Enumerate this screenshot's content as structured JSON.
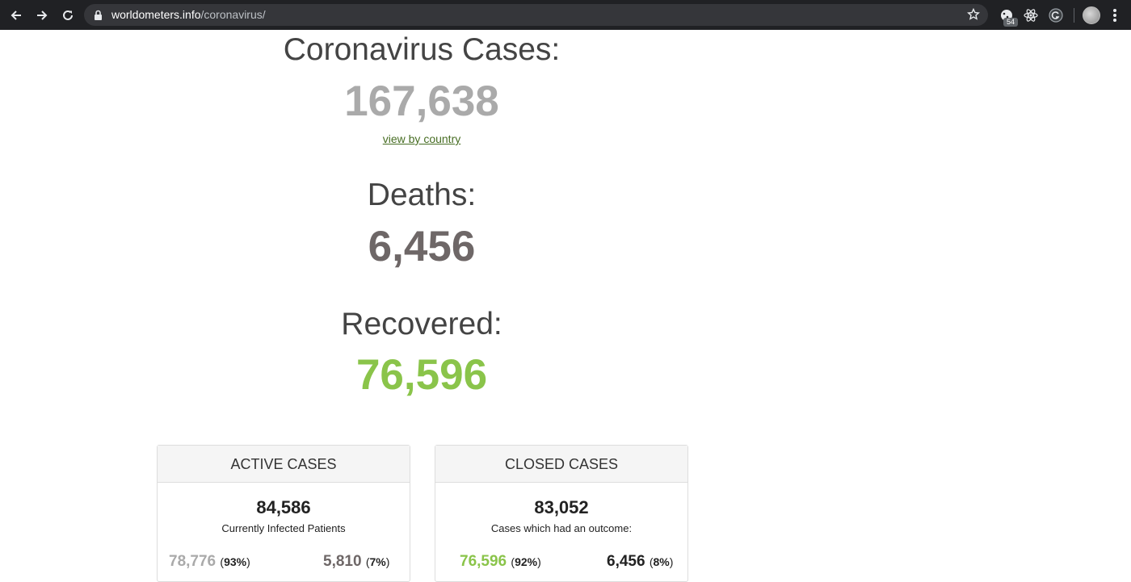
{
  "browser": {
    "url_host": "worldometers.info",
    "url_path": "/coronavirus/",
    "extension_badge": "54"
  },
  "counters": {
    "cases_label": "Coronavirus Cases:",
    "cases_value": "167,638",
    "view_link": "view by country",
    "deaths_label": "Deaths:",
    "deaths_value": "6,456",
    "recovered_label": "Recovered:",
    "recovered_value": "76,596"
  },
  "active": {
    "title": "ACTIVE CASES",
    "total": "84,586",
    "subtitle": "Currently Infected Patients",
    "left_value": "78,776",
    "left_pct": "93%",
    "right_value": "5,810",
    "right_pct": "7%"
  },
  "closed": {
    "title": "CLOSED CASES",
    "total": "83,052",
    "subtitle": "Cases which had an outcome:",
    "left_value": "76,596",
    "left_pct": "92%",
    "right_value": "6,456",
    "right_pct": "8%"
  },
  "colors": {
    "toolbar": "#202124",
    "cases": "#aaaaaa",
    "deaths": "#6e6767",
    "recovered": "#8ac44a",
    "link": "#476d23"
  }
}
